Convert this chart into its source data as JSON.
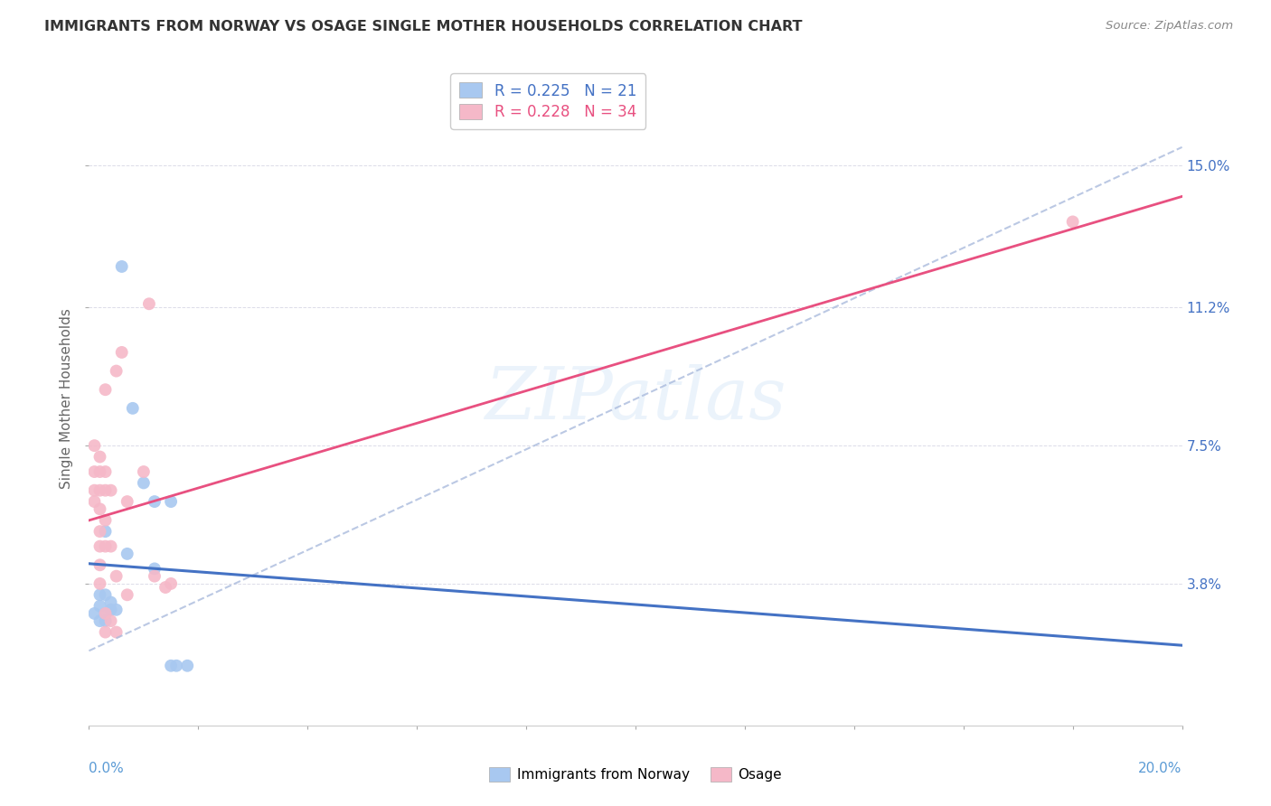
{
  "title": "IMMIGRANTS FROM NORWAY VS OSAGE SINGLE MOTHER HOUSEHOLDS CORRELATION CHART",
  "source": "Source: ZipAtlas.com",
  "ylabel": "Single Mother Households",
  "right_yticks": [
    "3.8%",
    "7.5%",
    "11.2%",
    "15.0%"
  ],
  "right_ytick_vals": [
    0.038,
    0.075,
    0.112,
    0.15
  ],
  "legend_blue_r": "R = 0.225",
  "legend_blue_n": "N = 21",
  "legend_pink_r": "R = 0.228",
  "legend_pink_n": "N = 34",
  "blue_color": "#A8C8F0",
  "pink_color": "#F5B8C8",
  "blue_line_color": "#4472C4",
  "pink_line_color": "#E85080",
  "blue_dash_color": "#7FB3E8",
  "watermark_text": "ZIPatlas",
  "blue_scatter": [
    [
      0.001,
      0.03
    ],
    [
      0.002,
      0.035
    ],
    [
      0.002,
      0.032
    ],
    [
      0.002,
      0.028
    ],
    [
      0.003,
      0.052
    ],
    [
      0.003,
      0.035
    ],
    [
      0.003,
      0.028
    ],
    [
      0.003,
      0.03
    ],
    [
      0.004,
      0.033
    ],
    [
      0.004,
      0.031
    ],
    [
      0.005,
      0.031
    ],
    [
      0.006,
      0.123
    ],
    [
      0.007,
      0.046
    ],
    [
      0.008,
      0.085
    ],
    [
      0.01,
      0.065
    ],
    [
      0.012,
      0.06
    ],
    [
      0.012,
      0.042
    ],
    [
      0.015,
      0.06
    ],
    [
      0.015,
      0.016
    ],
    [
      0.016,
      0.016
    ],
    [
      0.018,
      0.016
    ]
  ],
  "pink_scatter": [
    [
      0.001,
      0.075
    ],
    [
      0.001,
      0.068
    ],
    [
      0.001,
      0.063
    ],
    [
      0.001,
      0.06
    ],
    [
      0.002,
      0.072
    ],
    [
      0.002,
      0.068
    ],
    [
      0.002,
      0.063
    ],
    [
      0.002,
      0.058
    ],
    [
      0.002,
      0.052
    ],
    [
      0.002,
      0.048
    ],
    [
      0.002,
      0.043
    ],
    [
      0.002,
      0.038
    ],
    [
      0.003,
      0.09
    ],
    [
      0.003,
      0.068
    ],
    [
      0.003,
      0.063
    ],
    [
      0.003,
      0.055
    ],
    [
      0.003,
      0.048
    ],
    [
      0.003,
      0.03
    ],
    [
      0.003,
      0.025
    ],
    [
      0.004,
      0.063
    ],
    [
      0.004,
      0.048
    ],
    [
      0.004,
      0.028
    ],
    [
      0.005,
      0.095
    ],
    [
      0.005,
      0.04
    ],
    [
      0.005,
      0.025
    ],
    [
      0.006,
      0.1
    ],
    [
      0.007,
      0.06
    ],
    [
      0.007,
      0.035
    ],
    [
      0.01,
      0.068
    ],
    [
      0.011,
      0.113
    ],
    [
      0.012,
      0.04
    ],
    [
      0.014,
      0.037
    ],
    [
      0.015,
      0.038
    ],
    [
      0.18,
      0.135
    ]
  ],
  "xlim": [
    0.0,
    0.2
  ],
  "ylim": [
    0.0,
    0.175
  ],
  "background_color": "#FFFFFF",
  "grid_color": "#DCDCE8"
}
